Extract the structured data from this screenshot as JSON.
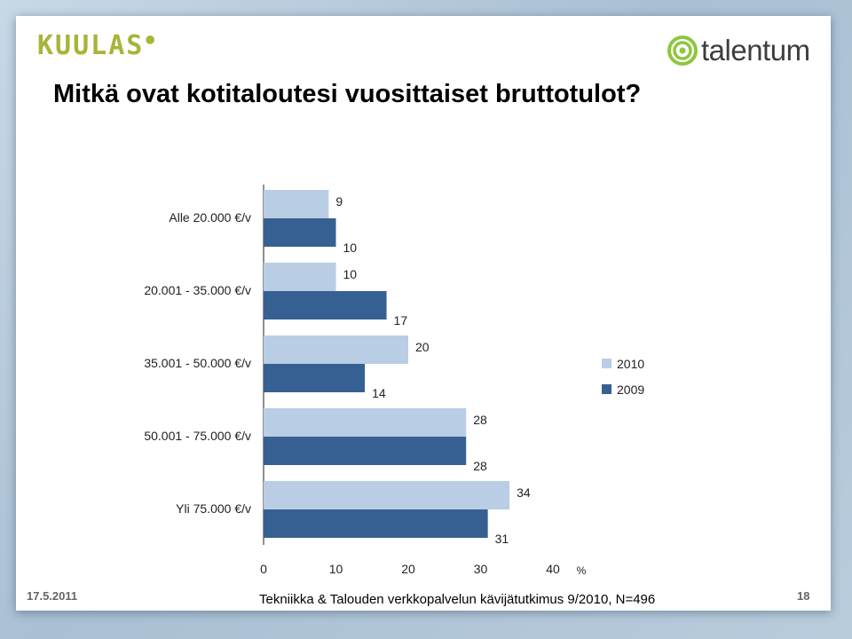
{
  "brand": {
    "left_logo": "KUULAS",
    "right_logo": "talentum"
  },
  "slide": {
    "title": "Mitkä ovat kotitaloutesi vuosittaiset bruttotulot?",
    "date": "17.5.2011",
    "source": "Tekniikka & Talouden verkkopalvelun kävijätutkimus 9/2010, N=496",
    "page_number": "18"
  },
  "chart_data": {
    "type": "bar",
    "orientation": "horizontal",
    "title": "",
    "categories": [
      "Alle 20.000 €/v",
      "20.001 - 35.000 €/v",
      "35.001 - 50.000 €/v",
      "50.001 - 75.000 €/v",
      "Yli 75.000 €/v"
    ],
    "series": [
      {
        "name": "2010",
        "values": [
          9,
          10,
          20,
          28,
          34
        ],
        "color": "#b9cde5"
      },
      {
        "name": "2009",
        "values": [
          10,
          17,
          14,
          28,
          31
        ],
        "color": "#376092"
      }
    ],
    "xlim": [
      0,
      40
    ],
    "x_ticks": [
      "0",
      "10",
      "20",
      "30",
      "40"
    ],
    "x_unit": "%",
    "legend_position": "right",
    "grid": false
  }
}
